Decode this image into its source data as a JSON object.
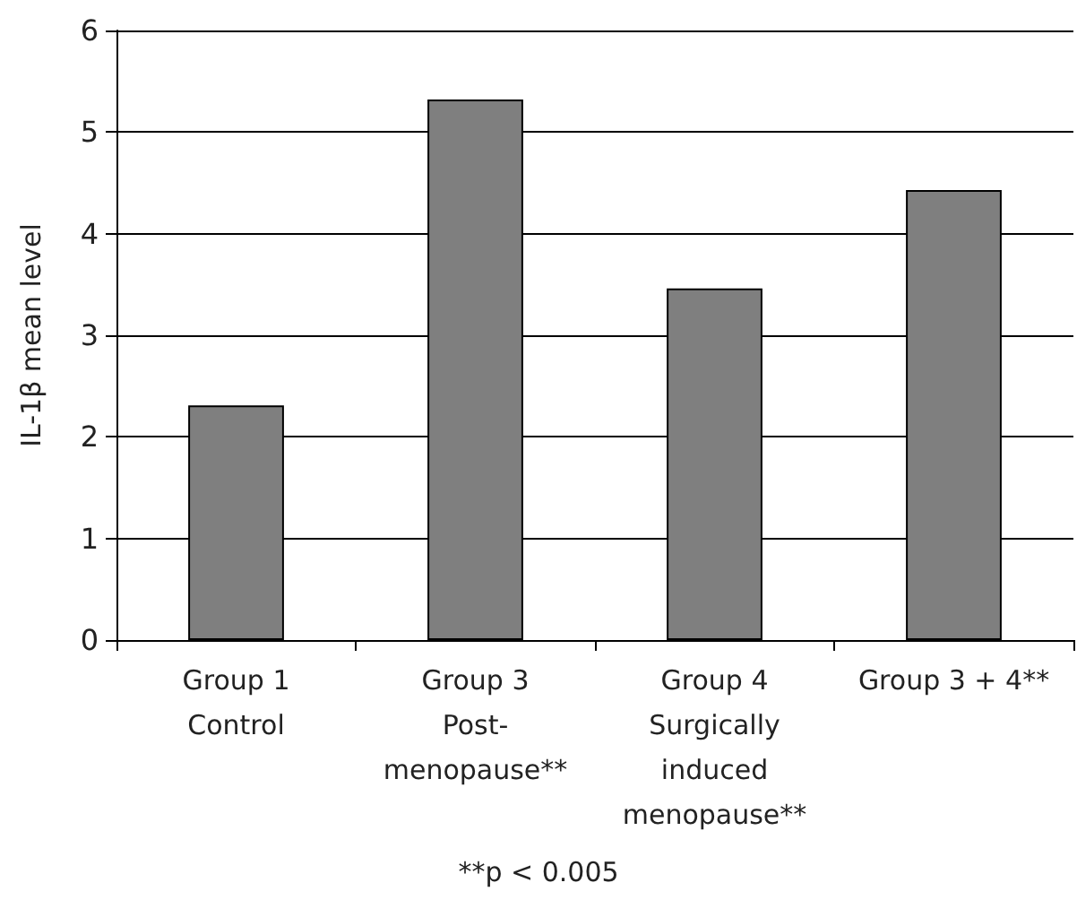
{
  "chart_data": {
    "type": "bar",
    "ylabel": "IL-1β mean level",
    "categories": [
      "Group 1\nControl",
      "Group 3\nPost-\nmenopause**",
      "Group 4\nSurgically\ninduced\nmenopause**",
      "Group 3 + 4**"
    ],
    "values": [
      2.31,
      5.32,
      3.46,
      4.43
    ],
    "color": "#7f7f7f",
    "ylim": [
      0,
      6
    ],
    "yticks": [
      0,
      1,
      2,
      3,
      4,
      5,
      6
    ],
    "grid": "y",
    "annotations": [
      "**p < 0.005"
    ]
  }
}
